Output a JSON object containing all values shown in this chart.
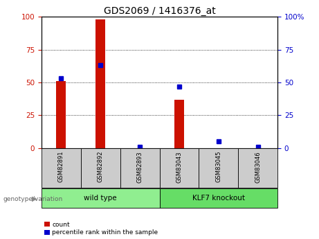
{
  "title": "GDS2069 / 1416376_at",
  "samples": [
    "GSM82891",
    "GSM82892",
    "GSM82893",
    "GSM83043",
    "GSM83045",
    "GSM83046"
  ],
  "count_values": [
    51,
    98,
    0,
    37,
    0,
    0
  ],
  "percentile_values": [
    53,
    63,
    1,
    47,
    5,
    1
  ],
  "groups": [
    {
      "label": "wild type",
      "indices": [
        0,
        1,
        2
      ],
      "color": "#90ee90"
    },
    {
      "label": "KLF7 knockout",
      "indices": [
        3,
        4,
        5
      ],
      "color": "#66dd66"
    }
  ],
  "group_label": "genotype/variation",
  "ylim": [
    0,
    100
  ],
  "yticks": [
    0,
    25,
    50,
    75,
    100
  ],
  "bar_color": "#cc1100",
  "dot_color": "#0000cc",
  "legend_items": [
    "count",
    "percentile rank within the sample"
  ],
  "sample_box_color": "#cccccc",
  "title_fontsize": 10,
  "tick_fontsize": 7.5,
  "bar_width": 0.25
}
